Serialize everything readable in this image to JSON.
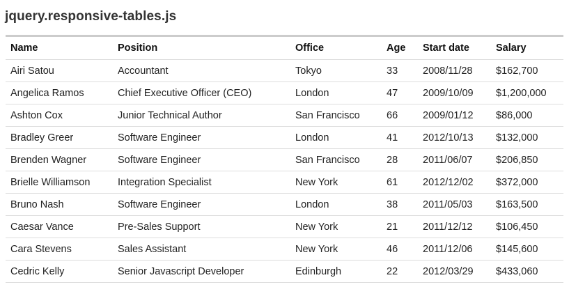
{
  "page": {
    "title": "jquery.responsive-tables.js"
  },
  "table": {
    "headers": {
      "name": "Name",
      "position": "Position",
      "office": "Office",
      "age": "Age",
      "start_date": "Start date",
      "salary": "Salary"
    },
    "rows": [
      {
        "name": "Airi Satou",
        "position": "Accountant",
        "office": "Tokyo",
        "age": "33",
        "start_date": "2008/11/28",
        "salary": "$162,700"
      },
      {
        "name": "Angelica Ramos",
        "position": "Chief Executive Officer (CEO)",
        "office": "London",
        "age": "47",
        "start_date": "2009/10/09",
        "salary": "$1,200,000"
      },
      {
        "name": "Ashton Cox",
        "position": "Junior Technical Author",
        "office": "San Francisco",
        "age": "66",
        "start_date": "2009/01/12",
        "salary": "$86,000"
      },
      {
        "name": "Bradley Greer",
        "position": "Software Engineer",
        "office": "London",
        "age": "41",
        "start_date": "2012/10/13",
        "salary": "$132,000"
      },
      {
        "name": "Brenden Wagner",
        "position": "Software Engineer",
        "office": "San Francisco",
        "age": "28",
        "start_date": "2011/06/07",
        "salary": "$206,850"
      },
      {
        "name": "Brielle Williamson",
        "position": "Integration Specialist",
        "office": "New York",
        "age": "61",
        "start_date": "2012/12/02",
        "salary": "$372,000"
      },
      {
        "name": "Bruno Nash",
        "position": "Software Engineer",
        "office": "London",
        "age": "38",
        "start_date": "2011/05/03",
        "salary": "$163,500"
      },
      {
        "name": "Caesar Vance",
        "position": "Pre-Sales Support",
        "office": "New York",
        "age": "21",
        "start_date": "2011/12/12",
        "salary": "$106,450"
      },
      {
        "name": "Cara Stevens",
        "position": "Sales Assistant",
        "office": "New York",
        "age": "46",
        "start_date": "2011/12/06",
        "salary": "$145,600"
      },
      {
        "name": "Cedric Kelly",
        "position": "Senior Javascript Developer",
        "office": "Edinburgh",
        "age": "22",
        "start_date": "2012/03/29",
        "salary": "$433,060"
      }
    ]
  }
}
